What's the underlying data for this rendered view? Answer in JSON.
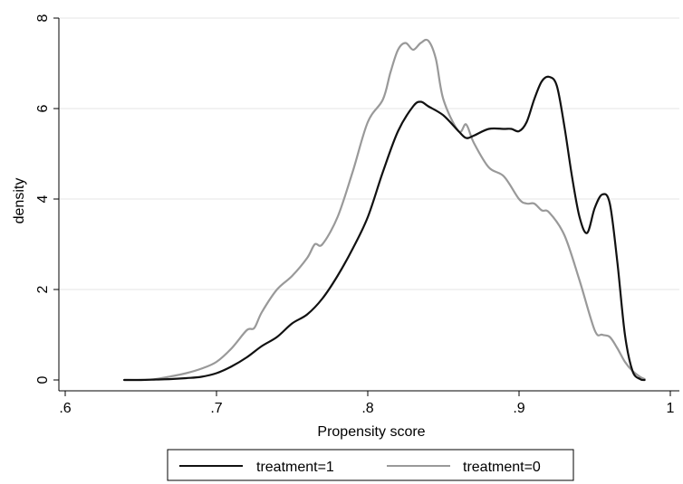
{
  "chart_data": {
    "type": "line",
    "xlabel": "Propensity score",
    "ylabel": "density",
    "xlim": [
      0.6,
      1.0
    ],
    "ylim": [
      0,
      8
    ],
    "xticks": [
      0.6,
      0.7,
      0.8,
      0.9,
      1.0
    ],
    "xtick_labels": [
      ".6",
      ".7",
      ".8",
      ".9",
      "1"
    ],
    "yticks": [
      0,
      2,
      4,
      6,
      8
    ],
    "ytick_labels": [
      "0",
      "2",
      "4",
      "6",
      "8"
    ],
    "grid": "horizontal",
    "legend_position": "bottom",
    "series": [
      {
        "name": "treatment=1",
        "color": "#111111",
        "x": [
          0.639,
          0.65,
          0.66,
          0.67,
          0.68,
          0.69,
          0.7,
          0.71,
          0.72,
          0.73,
          0.74,
          0.75,
          0.76,
          0.77,
          0.78,
          0.79,
          0.8,
          0.81,
          0.82,
          0.83,
          0.835,
          0.84,
          0.85,
          0.86,
          0.865,
          0.87,
          0.88,
          0.89,
          0.895,
          0.9,
          0.905,
          0.91,
          0.915,
          0.92,
          0.925,
          0.93,
          0.935,
          0.94,
          0.945,
          0.95,
          0.955,
          0.96,
          0.965,
          0.97,
          0.975,
          0.98,
          0.983
        ],
        "y": [
          0.0,
          0.0,
          0.01,
          0.02,
          0.04,
          0.07,
          0.15,
          0.3,
          0.5,
          0.75,
          0.95,
          1.25,
          1.45,
          1.8,
          2.3,
          2.9,
          3.6,
          4.6,
          5.5,
          6.05,
          6.15,
          6.05,
          5.85,
          5.5,
          5.35,
          5.4,
          5.55,
          5.55,
          5.55,
          5.5,
          5.7,
          6.2,
          6.6,
          6.7,
          6.5,
          5.6,
          4.5,
          3.6,
          3.25,
          3.8,
          4.1,
          3.9,
          2.6,
          1.0,
          0.2,
          0.02,
          0.0
        ]
      },
      {
        "name": "treatment=0",
        "color": "#999999",
        "x": [
          0.639,
          0.65,
          0.66,
          0.67,
          0.68,
          0.69,
          0.7,
          0.71,
          0.72,
          0.725,
          0.73,
          0.74,
          0.75,
          0.76,
          0.765,
          0.77,
          0.78,
          0.79,
          0.8,
          0.81,
          0.815,
          0.82,
          0.825,
          0.83,
          0.835,
          0.84,
          0.845,
          0.85,
          0.86,
          0.865,
          0.87,
          0.88,
          0.89,
          0.9,
          0.905,
          0.91,
          0.915,
          0.92,
          0.93,
          0.94,
          0.95,
          0.955,
          0.96,
          0.965,
          0.97,
          0.975,
          0.98,
          0.983
        ],
        "y": [
          0.0,
          0.0,
          0.02,
          0.08,
          0.15,
          0.25,
          0.4,
          0.7,
          1.1,
          1.15,
          1.5,
          2.0,
          2.3,
          2.7,
          3.0,
          3.0,
          3.6,
          4.6,
          5.7,
          6.2,
          6.8,
          7.3,
          7.45,
          7.3,
          7.45,
          7.5,
          7.1,
          6.2,
          5.5,
          5.65,
          5.25,
          4.7,
          4.5,
          4.0,
          3.9,
          3.9,
          3.75,
          3.7,
          3.2,
          2.2,
          1.1,
          1.0,
          0.95,
          0.7,
          0.4,
          0.2,
          0.07,
          0.02
        ]
      }
    ]
  }
}
